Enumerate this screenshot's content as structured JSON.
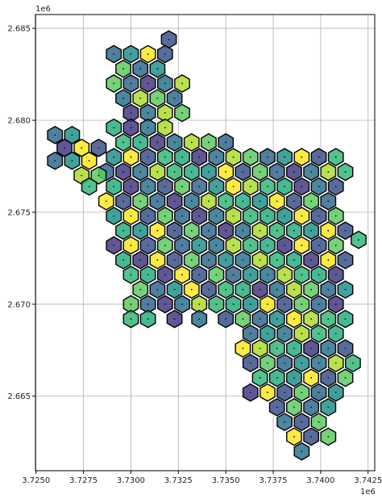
{
  "chart_data": {
    "type": "scatter",
    "title": "",
    "xlabel": "",
    "ylabel": "",
    "x_offset_text": "1e6",
    "y_offset_text": "1e6",
    "xlim": [
      3.72497,
      3.74285
    ],
    "ylim": [
      2.66095,
      2.68575
    ],
    "x_ticks": [
      3.725,
      3.7275,
      3.73,
      3.7325,
      3.735,
      3.7375,
      3.74,
      3.7425
    ],
    "x_tick_labels": [
      "3.7250",
      "3.7275",
      "3.7300",
      "3.7325",
      "3.7350",
      "3.7375",
      "3.7400",
      "3.7425"
    ],
    "y_ticks": [
      2.665,
      2.67,
      2.675,
      2.68,
      2.685
    ],
    "y_tick_labels": [
      "2.665",
      "2.670",
      "2.675",
      "2.680",
      "2.685"
    ],
    "grid": true,
    "legend": "none",
    "marker": "hexagon",
    "colormap": "viridis (translucent)",
    "hex_size": 0.00045,
    "rows": [
      {
        "y": 2.6844,
        "xs": [
          3.732
        ]
      },
      {
        "y": 2.6836,
        "xs": [
          3.7291,
          3.73,
          3.7309,
          3.7318
        ]
      },
      {
        "y": 2.6828,
        "xs": [
          3.7296,
          3.7305,
          3.7314
        ]
      },
      {
        "y": 2.682,
        "xs": [
          3.7291,
          3.73,
          3.7309,
          3.7318,
          3.7327
        ]
      },
      {
        "y": 2.6812,
        "xs": [
          3.7296,
          3.7305,
          3.7314,
          3.7323
        ]
      },
      {
        "y": 2.6804,
        "xs": [
          3.73,
          3.7309,
          3.7318,
          3.7327
        ]
      },
      {
        "y": 2.6796,
        "xs": [
          3.7291,
          3.73,
          3.7309,
          3.7318
        ]
      },
      {
        "y": 2.6788,
        "xs": [
          3.7296,
          3.7305,
          3.7314,
          3.7323,
          3.7332,
          3.7341,
          3.735
        ]
      },
      {
        "y": 2.6792,
        "xs": [
          3.726,
          3.7269
        ]
      },
      {
        "y": 2.6785,
        "xs": [
          3.7265,
          3.7274,
          3.7283
        ]
      },
      {
        "y": 2.678,
        "xs": [
          3.7291,
          3.73,
          3.7309,
          3.7318,
          3.7327,
          3.7336,
          3.7345,
          3.7354,
          3.7363,
          3.7372,
          3.7381,
          3.739,
          3.7399,
          3.7408
        ]
      },
      {
        "y": 2.6778,
        "xs": [
          3.726,
          3.7269,
          3.7278
        ]
      },
      {
        "y": 2.6772,
        "xs": [
          3.7287,
          3.7296,
          3.7305,
          3.7314,
          3.7323,
          3.7332,
          3.7341,
          3.735,
          3.7359,
          3.7368,
          3.7377,
          3.7386,
          3.7395,
          3.7404,
          3.7413
        ]
      },
      {
        "y": 2.677,
        "xs": [
          3.7274,
          3.7283
        ]
      },
      {
        "y": 2.6764,
        "xs": [
          3.7278,
          3.7291,
          3.73,
          3.7309,
          3.7318,
          3.7327,
          3.7336,
          3.7345,
          3.7354,
          3.7363,
          3.7372,
          3.7381,
          3.739,
          3.7399,
          3.7408
        ]
      },
      {
        "y": 2.6756,
        "xs": [
          3.7287,
          3.7296,
          3.7305,
          3.7314,
          3.7323,
          3.7332,
          3.7341,
          3.735,
          3.7359,
          3.7368,
          3.7377,
          3.7386,
          3.7395,
          3.7404
        ]
      },
      {
        "y": 2.6748,
        "xs": [
          3.7291,
          3.73,
          3.7309,
          3.7318,
          3.7327,
          3.7336,
          3.7345,
          3.7354,
          3.7363,
          3.7372,
          3.7381,
          3.739,
          3.7399,
          3.7408
        ]
      },
      {
        "y": 2.674,
        "xs": [
          3.7296,
          3.7305,
          3.7314,
          3.7323,
          3.7332,
          3.7341,
          3.735,
          3.7359,
          3.7368,
          3.7377,
          3.7386,
          3.7395,
          3.7404,
          3.7413
        ]
      },
      {
        "y": 2.6735,
        "xs": [
          3.742
        ]
      },
      {
        "y": 2.6732,
        "xs": [
          3.7291,
          3.73,
          3.7309,
          3.7318,
          3.7327,
          3.7336,
          3.7345,
          3.7354,
          3.7363,
          3.7372,
          3.7381,
          3.739,
          3.7399,
          3.7408
        ]
      },
      {
        "y": 2.6724,
        "xs": [
          3.7296,
          3.7305,
          3.7314,
          3.7323,
          3.7332,
          3.7341,
          3.735,
          3.7359,
          3.7368,
          3.7377,
          3.7386,
          3.7395,
          3.7404,
          3.7413
        ]
      },
      {
        "y": 2.6716,
        "xs": [
          3.73,
          3.7309,
          3.7318,
          3.7327,
          3.7336,
          3.7345,
          3.7354,
          3.7363,
          3.7372,
          3.7381,
          3.739,
          3.7399,
          3.7408
        ]
      },
      {
        "y": 2.6708,
        "xs": [
          3.7305,
          3.7314,
          3.7323,
          3.7332,
          3.7341,
          3.735,
          3.7359,
          3.7368,
          3.7377,
          3.7386,
          3.7395,
          3.7404,
          3.7413
        ]
      },
      {
        "y": 2.67,
        "xs": [
          3.73,
          3.7309,
          3.7318,
          3.7327,
          3.7336,
          3.7345,
          3.7354,
          3.7363,
          3.7372,
          3.7381,
          3.739,
          3.7399,
          3.7408
        ]
      },
      {
        "y": 2.6692,
        "xs": [
          3.73,
          3.7309,
          3.7323,
          3.7336,
          3.735,
          3.7359,
          3.7368,
          3.7377,
          3.7386,
          3.7395,
          3.7404,
          3.7413
        ]
      },
      {
        "y": 2.6684,
        "xs": [
          3.7363,
          3.7372,
          3.7381,
          3.739,
          3.7399,
          3.7408
        ]
      },
      {
        "y": 2.6676,
        "xs": [
          3.7359,
          3.7368,
          3.7377,
          3.7386,
          3.7395,
          3.7404,
          3.7413
        ]
      },
      {
        "y": 2.6668,
        "xs": [
          3.7363,
          3.7372,
          3.7381,
          3.739,
          3.7399,
          3.7408,
          3.7417
        ]
      },
      {
        "y": 2.666,
        "xs": [
          3.7368,
          3.7377,
          3.7386,
          3.7395,
          3.7404,
          3.7413
        ]
      },
      {
        "y": 2.6652,
        "xs": [
          3.7363,
          3.7372,
          3.7381,
          3.739,
          3.7399,
          3.7408
        ]
      },
      {
        "y": 2.6644,
        "xs": [
          3.7377,
          3.7386,
          3.7395,
          3.7404
        ]
      },
      {
        "y": 2.6636,
        "xs": [
          3.7381,
          3.739,
          3.7399
        ]
      },
      {
        "y": 2.6628,
        "xs": [
          3.7386,
          3.7395,
          3.7404
        ]
      },
      {
        "y": 2.662,
        "xs": [
          3.739
        ]
      }
    ],
    "palette": [
      "#3b528b",
      "#2c728e",
      "#21918c",
      "#28ae80",
      "#5ec962",
      "#addc30",
      "#fde725",
      "#443983",
      "#31688e",
      "#35b779"
    ]
  }
}
